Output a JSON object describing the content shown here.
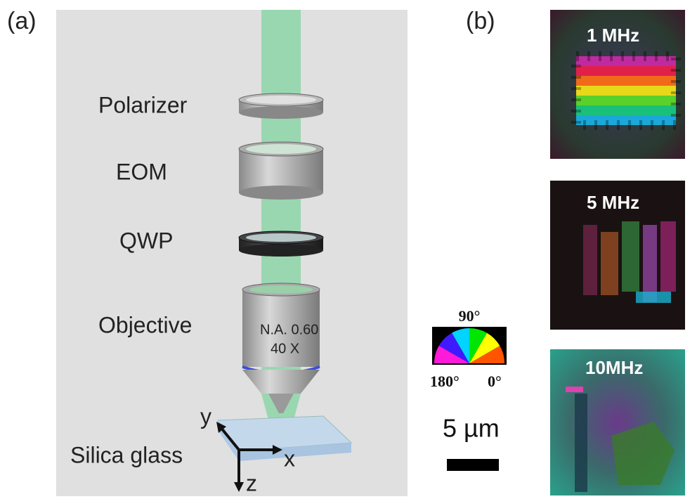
{
  "panel_a": {
    "label": "(a)",
    "components": [
      {
        "label": "Polarizer"
      },
      {
        "label": "EOM"
      },
      {
        "label": "QWP"
      },
      {
        "label": "Objective"
      }
    ],
    "objective_text": [
      "N.A. 0.60",
      "40 X"
    ],
    "sample": "Silica glass",
    "axes": {
      "y": "y",
      "x": "x",
      "z": "z"
    }
  },
  "panel_b": {
    "label": "(b)",
    "images": [
      {
        "label": "1 MHz"
      },
      {
        "label": "5 MHz"
      },
      {
        "label": "10MHz"
      }
    ],
    "color_wheel": {
      "top": "90°",
      "left": "180°",
      "right": "0°"
    },
    "scale_bar": "5 µm"
  }
}
